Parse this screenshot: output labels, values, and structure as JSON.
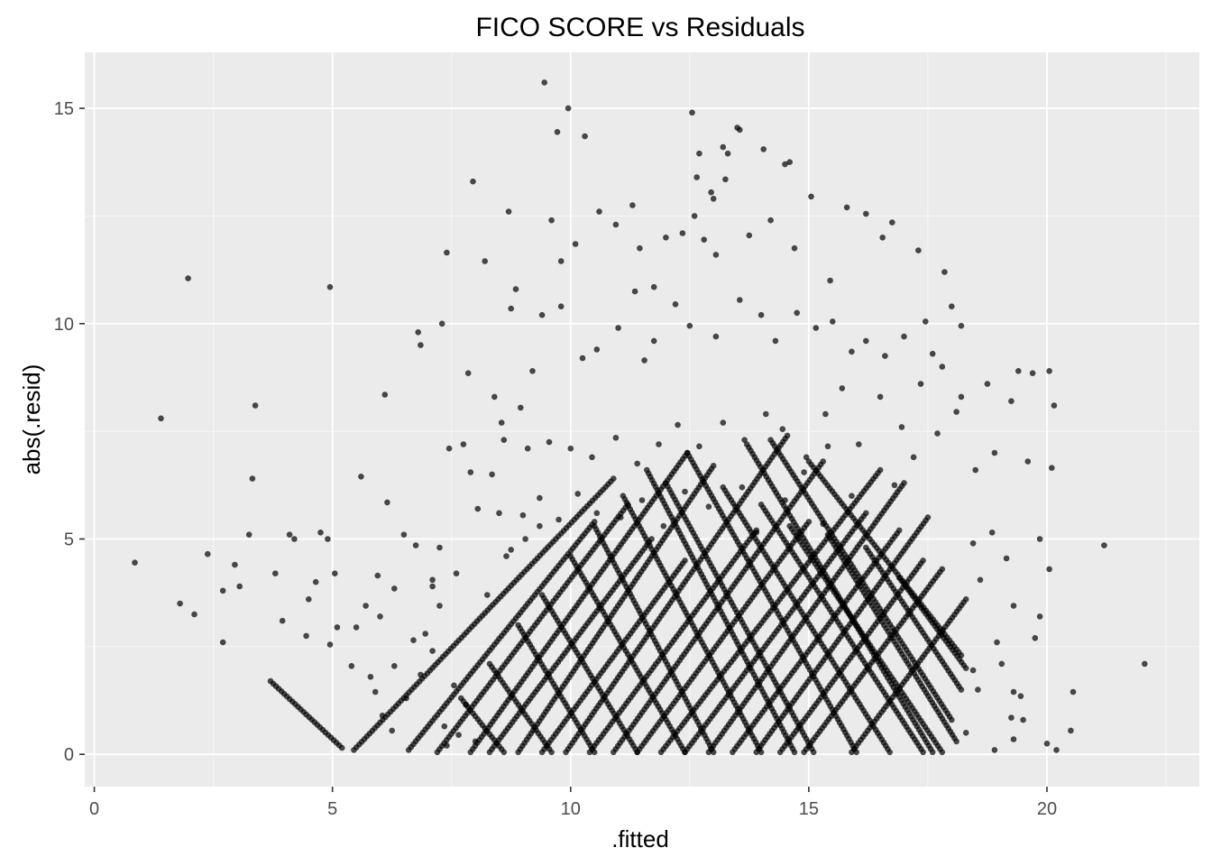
{
  "chart_data": {
    "type": "scatter",
    "title": "FICO SCORE vs Residuals",
    "xlabel": ".fitted",
    "ylabel": "abs(.resid)",
    "xlim": [
      -0.2,
      23.2
    ],
    "ylim": [
      -0.75,
      16.3
    ],
    "x_ticks": [
      0,
      5,
      10,
      15,
      20
    ],
    "y_ticks": [
      0,
      5,
      10,
      15
    ],
    "x_tick_labels": [
      "0",
      "5",
      "10",
      "15",
      "20"
    ],
    "y_tick_labels": [
      "0",
      "5",
      "10",
      "15"
    ],
    "grid": true,
    "legend": "none",
    "colors": {
      "panel_background": "#EBEBEB",
      "grid_major": "#FFFFFF",
      "point": "#000000"
    },
    "point_alpha": 0.7,
    "series": [
      {
        "points": [
          [
            0.85,
            4.45
          ],
          [
            1.4,
            7.8
          ],
          [
            1.8,
            3.5
          ],
          [
            1.97,
            11.05
          ],
          [
            2.1,
            3.25
          ],
          [
            2.38,
            4.65
          ],
          [
            2.7,
            3.8
          ],
          [
            2.7,
            2.6
          ],
          [
            2.95,
            4.4
          ],
          [
            3.05,
            3.9
          ],
          [
            3.25,
            5.1
          ],
          [
            3.32,
            6.4
          ],
          [
            3.38,
            8.1
          ],
          [
            3.8,
            4.2
          ],
          [
            3.95,
            3.1
          ],
          [
            4.1,
            5.1
          ],
          [
            4.2,
            5.0
          ],
          [
            4.45,
            2.75
          ],
          [
            4.5,
            3.6
          ],
          [
            4.65,
            4.0
          ],
          [
            4.75,
            5.15
          ],
          [
            4.9,
            5.0
          ],
          [
            4.95,
            2.55
          ],
          [
            5.05,
            4.2
          ],
          [
            5.1,
            2.95
          ],
          [
            4.95,
            10.85
          ],
          [
            5.6,
            6.45
          ],
          [
            5.95,
            4.15
          ],
          [
            6.1,
            8.35
          ],
          [
            6.15,
            5.85
          ],
          [
            6.5,
            5.1
          ],
          [
            6.75,
            4.85
          ],
          [
            6.8,
            9.8
          ],
          [
            6.85,
            9.5
          ],
          [
            7.1,
            4.05
          ],
          [
            7.25,
            3.45
          ],
          [
            7.3,
            10.0
          ],
          [
            7.4,
            11.65
          ],
          [
            7.45,
            7.1
          ],
          [
            7.75,
            7.2
          ],
          [
            7.85,
            8.85
          ],
          [
            7.95,
            13.3
          ],
          [
            8.2,
            11.45
          ],
          [
            8.35,
            6.5
          ],
          [
            8.4,
            8.3
          ],
          [
            8.55,
            7.7
          ],
          [
            8.7,
            12.6
          ],
          [
            8.75,
            10.35
          ],
          [
            8.85,
            10.8
          ],
          [
            9.05,
            5.0
          ],
          [
            9.35,
            5.3
          ],
          [
            9.45,
            15.6
          ],
          [
            9.6,
            12.4
          ],
          [
            9.72,
            14.45
          ],
          [
            9.8,
            11.45
          ],
          [
            9.95,
            15.0
          ],
          [
            10.3,
            14.35
          ],
          [
            10.1,
            11.85
          ],
          [
            10.6,
            12.6
          ],
          [
            10.95,
            12.3
          ],
          [
            11.3,
            12.75
          ],
          [
            11.45,
            11.75
          ],
          [
            11.75,
            10.85
          ],
          [
            12.0,
            12.0
          ],
          [
            12.35,
            12.1
          ],
          [
            12.55,
            14.9
          ],
          [
            12.6,
            12.5
          ],
          [
            12.65,
            13.4
          ],
          [
            12.7,
            13.95
          ],
          [
            12.8,
            11.95
          ],
          [
            12.95,
            13.05
          ],
          [
            13.0,
            12.9
          ],
          [
            13.05,
            11.6
          ],
          [
            13.2,
            14.1
          ],
          [
            13.3,
            13.95
          ],
          [
            13.25,
            13.35
          ],
          [
            13.5,
            14.55
          ],
          [
            13.55,
            14.5
          ],
          [
            13.75,
            12.05
          ],
          [
            14.05,
            14.05
          ],
          [
            14.2,
            12.4
          ],
          [
            14.5,
            13.7
          ],
          [
            14.6,
            13.75
          ],
          [
            14.7,
            11.75
          ],
          [
            15.05,
            12.95
          ],
          [
            15.45,
            11.0
          ],
          [
            15.8,
            12.7
          ],
          [
            16.2,
            12.55
          ],
          [
            16.55,
            12.0
          ],
          [
            16.75,
            12.35
          ],
          [
            17.3,
            11.7
          ],
          [
            17.85,
            11.2
          ],
          [
            17.6,
            9.3
          ],
          [
            18.0,
            10.4
          ],
          [
            18.2,
            9.95
          ],
          [
            18.75,
            8.6
          ],
          [
            18.9,
            7.0
          ],
          [
            19.25,
            8.2
          ],
          [
            19.4,
            8.9
          ],
          [
            19.6,
            6.8
          ],
          [
            19.7,
            8.85
          ],
          [
            19.85,
            5.0
          ],
          [
            20.05,
            8.9
          ],
          [
            20.1,
            6.65
          ],
          [
            20.15,
            8.1
          ],
          [
            20.05,
            4.3
          ],
          [
            19.15,
            4.55
          ],
          [
            19.3,
            3.45
          ],
          [
            19.85,
            3.2
          ],
          [
            19.75,
            2.7
          ],
          [
            19.3,
            1.45
          ],
          [
            19.45,
            1.35
          ],
          [
            20.0,
            0.25
          ],
          [
            20.2,
            0.1
          ],
          [
            20.5,
            0.55
          ],
          [
            20.55,
            1.45
          ],
          [
            21.2,
            4.85
          ],
          [
            22.05,
            2.1
          ],
          [
            18.45,
            4.9
          ],
          [
            18.6,
            4.05
          ],
          [
            18.95,
            2.6
          ],
          [
            19.05,
            2.1
          ],
          [
            19.25,
            0.85
          ],
          [
            19.5,
            0.8
          ],
          [
            19.3,
            0.35
          ],
          [
            18.9,
            0.1
          ],
          [
            18.3,
            0.5
          ],
          [
            18.55,
            1.5
          ],
          [
            18.45,
            1.95
          ],
          [
            5.8,
            1.8
          ],
          [
            5.9,
            1.45
          ],
          [
            6.05,
            0.9
          ],
          [
            6.25,
            0.55
          ],
          [
            6.3,
            2.05
          ],
          [
            6.55,
            1.3
          ],
          [
            6.85,
            1.85
          ],
          [
            6.95,
            2.8
          ],
          [
            7.1,
            2.4
          ],
          [
            7.35,
            0.65
          ],
          [
            7.4,
            0.2
          ],
          [
            7.55,
            1.6
          ],
          [
            7.65,
            0.45
          ],
          [
            7.8,
            1.15
          ],
          [
            8.0,
            0.3
          ],
          [
            5.4,
            2.05
          ],
          [
            5.7,
            3.45
          ],
          [
            5.5,
            2.95
          ],
          [
            6.0,
            3.2
          ],
          [
            6.3,
            3.85
          ],
          [
            6.7,
            2.65
          ],
          [
            7.1,
            3.9
          ],
          [
            7.25,
            4.8
          ],
          [
            7.6,
            4.2
          ],
          [
            7.9,
            6.55
          ],
          [
            8.05,
            5.7
          ],
          [
            8.5,
            5.6
          ],
          [
            8.6,
            7.3
          ],
          [
            8.95,
            8.05
          ],
          [
            9.2,
            8.9
          ],
          [
            9.4,
            10.2
          ],
          [
            9.8,
            10.4
          ],
          [
            10.25,
            9.2
          ],
          [
            10.55,
            9.4
          ],
          [
            11.0,
            9.9
          ],
          [
            11.35,
            10.75
          ],
          [
            11.55,
            9.15
          ],
          [
            11.75,
            9.6
          ],
          [
            12.2,
            10.45
          ],
          [
            12.5,
            9.95
          ],
          [
            13.05,
            9.7
          ],
          [
            13.55,
            10.55
          ],
          [
            14.0,
            10.2
          ],
          [
            14.3,
            9.6
          ],
          [
            14.75,
            10.25
          ],
          [
            15.15,
            9.9
          ],
          [
            15.5,
            10.05
          ],
          [
            15.9,
            9.35
          ],
          [
            16.2,
            9.6
          ],
          [
            16.6,
            9.25
          ],
          [
            17.0,
            9.7
          ],
          [
            17.45,
            10.05
          ],
          [
            17.8,
            9.0
          ],
          [
            18.2,
            8.3
          ],
          [
            15.35,
            7.9
          ],
          [
            15.7,
            8.5
          ],
          [
            16.05,
            7.2
          ],
          [
            16.5,
            8.3
          ],
          [
            16.95,
            7.6
          ],
          [
            17.35,
            8.6
          ],
          [
            17.7,
            7.45
          ],
          [
            18.1,
            7.95
          ],
          [
            18.5,
            6.6
          ],
          [
            18.85,
            5.15
          ],
          [
            17.2,
            6.9
          ],
          [
            16.8,
            6.25
          ],
          [
            15.9,
            6.0
          ],
          [
            14.9,
            6.55
          ],
          [
            15.3,
            5.35
          ],
          [
            14.5,
            5.9
          ],
          [
            13.9,
            5.15
          ],
          [
            13.6,
            6.2
          ],
          [
            12.9,
            5.75
          ],
          [
            12.4,
            6.1
          ],
          [
            11.95,
            5.3
          ],
          [
            11.5,
            5.9
          ],
          [
            11.05,
            5.5
          ],
          [
            10.55,
            5.6
          ],
          [
            10.15,
            6.05
          ],
          [
            9.75,
            5.45
          ],
          [
            9.35,
            5.95
          ],
          [
            9.0,
            5.55
          ],
          [
            8.65,
            4.6
          ],
          [
            8.25,
            3.7
          ],
          [
            8.75,
            4.75
          ],
          [
            9.1,
            7.1
          ],
          [
            9.55,
            7.25
          ],
          [
            10.0,
            7.1
          ],
          [
            10.45,
            6.9
          ],
          [
            10.95,
            7.35
          ],
          [
            11.4,
            6.75
          ],
          [
            11.85,
            7.2
          ],
          [
            12.25,
            7.65
          ],
          [
            12.7,
            7.15
          ],
          [
            13.2,
            7.7
          ],
          [
            13.65,
            7.3
          ],
          [
            14.1,
            7.9
          ],
          [
            14.45,
            7.55
          ],
          [
            14.95,
            6.9
          ],
          [
            15.4,
            7.15
          ]
        ]
      }
    ],
    "line_segments": [
      [
        [
          3.7,
          1.7
        ],
        [
          5.2,
          0.15
        ]
      ],
      [
        [
          5.45,
          0.1
        ],
        [
          10.9,
          6.4
        ]
      ],
      [
        [
          7.9,
          0.05
        ],
        [
          12.45,
          7.0
        ]
      ],
      [
        [
          8.9,
          0.05
        ],
        [
          13.0,
          6.7
        ]
      ],
      [
        [
          9.9,
          0.05
        ],
        [
          14.55,
          7.4
        ]
      ],
      [
        [
          10.9,
          0.05
        ],
        [
          15.3,
          6.8
        ]
      ],
      [
        [
          11.9,
          0.05
        ],
        [
          16.5,
          6.6
        ]
      ],
      [
        [
          12.9,
          0.05
        ],
        [
          17.0,
          6.3
        ]
      ],
      [
        [
          13.9,
          0.05
        ],
        [
          17.5,
          5.5
        ]
      ],
      [
        [
          14.9,
          0.05
        ],
        [
          17.8,
          4.3
        ]
      ],
      [
        [
          15.9,
          0.05
        ],
        [
          18.3,
          3.6
        ]
      ],
      [
        [
          9.4,
          0.05
        ],
        [
          12.4,
          4.5
        ]
      ],
      [
        [
          10.4,
          0.05
        ],
        [
          13.9,
          5.2
        ]
      ],
      [
        [
          11.4,
          0.05
        ],
        [
          15.0,
          5.4
        ]
      ],
      [
        [
          12.4,
          0.05
        ],
        [
          16.2,
          5.6
        ]
      ],
      [
        [
          13.4,
          0.05
        ],
        [
          16.9,
          5.2
        ]
      ],
      [
        [
          14.4,
          0.05
        ],
        [
          17.4,
          4.5
        ]
      ],
      [
        [
          6.6,
          0.1
        ],
        [
          10.5,
          5.4
        ]
      ],
      [
        [
          7.2,
          0.05
        ],
        [
          11.2,
          5.8
        ]
      ],
      [
        [
          8.3,
          0.05
        ],
        [
          11.7,
          5.0
        ]
      ],
      [
        [
          12.45,
          7.0
        ],
        [
          16.0,
          0.05
        ]
      ],
      [
        [
          12.0,
          6.3
        ],
        [
          15.1,
          0.05
        ]
      ],
      [
        [
          11.6,
          6.6
        ],
        [
          14.7,
          0.05
        ]
      ],
      [
        [
          11.1,
          6.0
        ],
        [
          14.0,
          0.05
        ]
      ],
      [
        [
          10.5,
          5.3
        ],
        [
          13.0,
          0.05
        ]
      ],
      [
        [
          10.0,
          4.6
        ],
        [
          12.4,
          0.05
        ]
      ],
      [
        [
          9.4,
          3.7
        ],
        [
          11.4,
          0.05
        ]
      ],
      [
        [
          8.9,
          3.0
        ],
        [
          10.5,
          0.05
        ]
      ],
      [
        [
          8.3,
          2.1
        ],
        [
          9.6,
          0.05
        ]
      ],
      [
        [
          7.7,
          1.3
        ],
        [
          8.6,
          0.05
        ]
      ],
      [
        [
          13.2,
          6.2
        ],
        [
          16.7,
          0.05
        ]
      ],
      [
        [
          14.0,
          5.8
        ],
        [
          17.4,
          0.05
        ]
      ],
      [
        [
          14.6,
          5.3
        ],
        [
          17.8,
          0.05
        ]
      ],
      [
        [
          15.4,
          5.1
        ],
        [
          18.1,
          0.3
        ]
      ],
      [
        [
          16.2,
          4.8
        ],
        [
          18.2,
          1.5
        ]
      ],
      [
        [
          16.9,
          4.1
        ],
        [
          18.3,
          2.0
        ]
      ],
      [
        [
          13.7,
          7.2
        ],
        [
          17.6,
          0.05
        ]
      ],
      [
        [
          14.2,
          7.3
        ],
        [
          18.0,
          0.8
        ]
      ],
      [
        [
          15.0,
          6.8
        ],
        [
          18.2,
          2.3
        ]
      ]
    ]
  }
}
